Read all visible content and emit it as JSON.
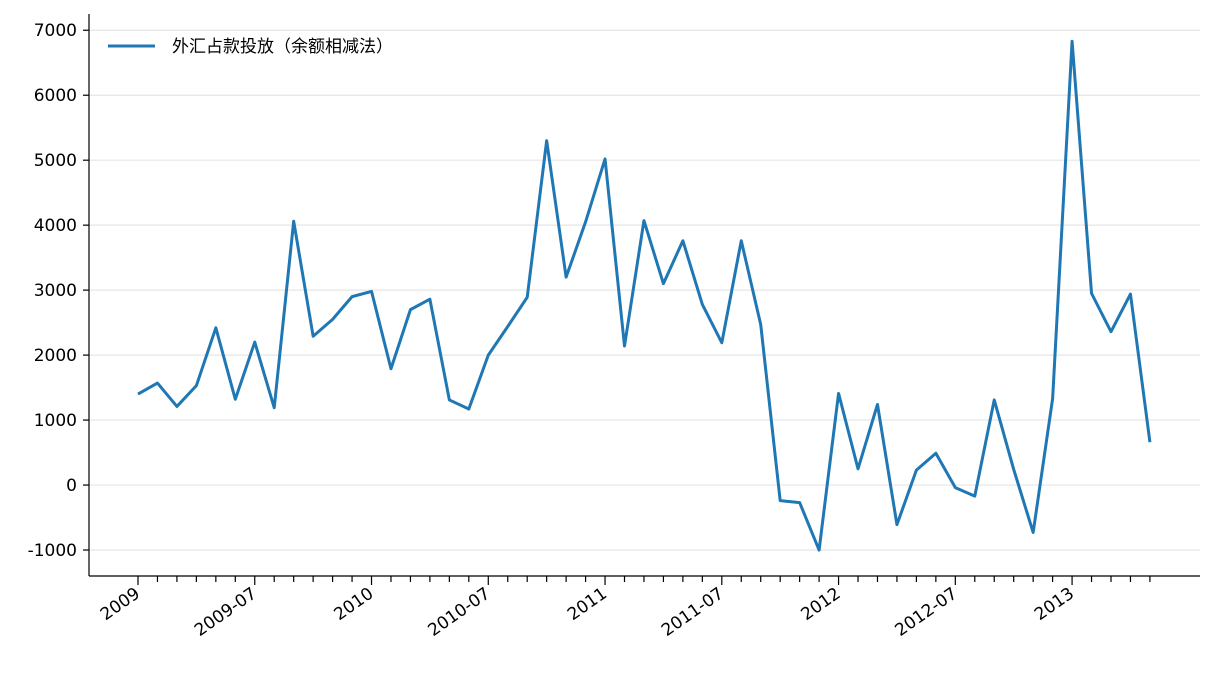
{
  "chart_data": {
    "type": "line",
    "categories": [
      "2009",
      null,
      null,
      null,
      null,
      null,
      "2009-07",
      null,
      null,
      null,
      null,
      null,
      "2010",
      null,
      null,
      null,
      null,
      null,
      "2010-07",
      null,
      null,
      null,
      null,
      null,
      "2011",
      null,
      null,
      null,
      null,
      null,
      "2011-07",
      null,
      null,
      null,
      null,
      null,
      "2012",
      null,
      null,
      null,
      null,
      null,
      "2012-07",
      null,
      null,
      null,
      null,
      null,
      "2013",
      null,
      null,
      null,
      null
    ],
    "series": [
      {
        "name": "外汇占款投放（余额相减法）",
        "color": "#1f77b4",
        "values": [
          1400,
          1570,
          1210,
          1530,
          2420,
          1320,
          2200,
          1190,
          4060,
          2290,
          2550,
          2900,
          2980,
          1790,
          2700,
          2860,
          1310,
          1170,
          2000,
          2440,
          2890,
          5300,
          3200,
          4050,
          5020,
          2140,
          4070,
          3100,
          3760,
          2780,
          2190,
          3760,
          2470,
          -240,
          -270,
          -1000,
          1410,
          250,
          1240,
          -610,
          230,
          490,
          -40,
          -170,
          1310,
          240,
          -730,
          1330,
          6830,
          2950,
          2360,
          2940,
          660
        ]
      }
    ],
    "ylim": [
      -1400,
      7250
    ],
    "yticks": [
      -1000,
      0,
      1000,
      2000,
      3000,
      4000,
      5000,
      6000,
      7000
    ],
    "grid": true,
    "legend": "upper left"
  }
}
